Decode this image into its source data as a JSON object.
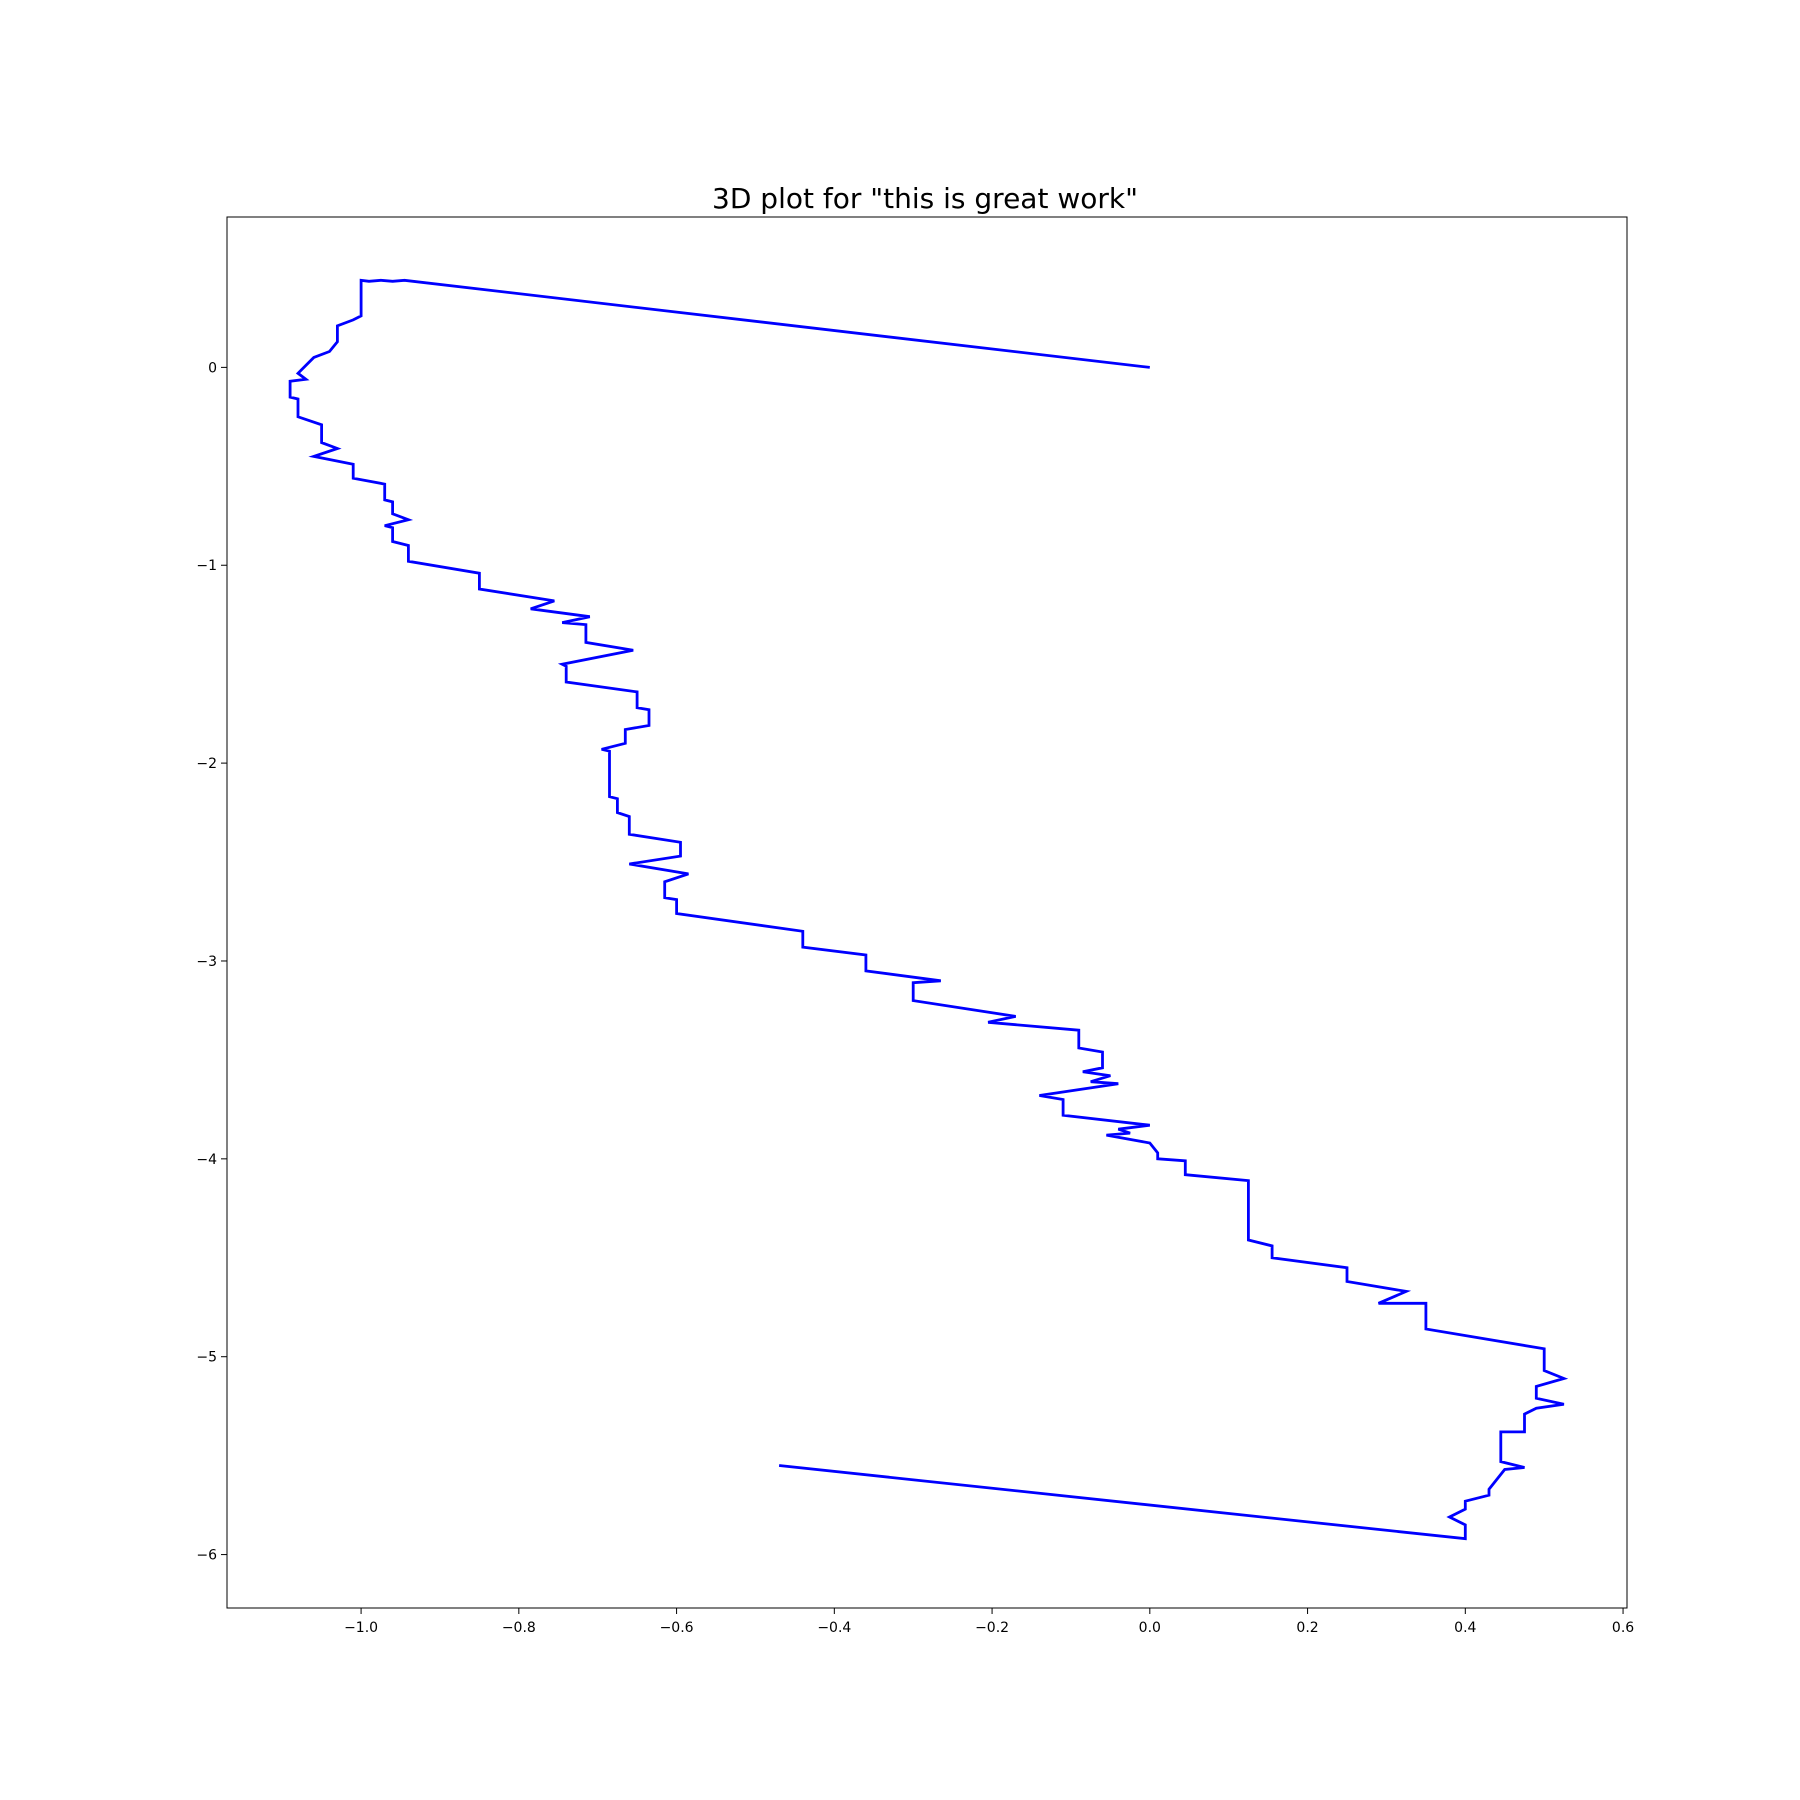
{
  "chart_data": {
    "type": "line",
    "title": "3D plot for \"this is great work\"",
    "xlabel": "",
    "ylabel": "",
    "xlim": [
      -1.17,
      0.605
    ],
    "ylim": [
      -6.27,
      0.76
    ],
    "x_ticks": [
      -1.0,
      -0.8,
      -0.6,
      -0.4,
      -0.2,
      0.0,
      0.2,
      0.4,
      0.6
    ],
    "x_tick_labels": [
      "−1.0",
      "−0.8",
      "−0.6",
      "−0.4",
      "−0.2",
      "0.0",
      "0.2",
      "0.4",
      "0.6"
    ],
    "y_ticks": [
      0,
      -1,
      -2,
      -3,
      -4,
      -5,
      -6
    ],
    "y_tick_labels": [
      "0",
      "−1",
      "−2",
      "−3",
      "−4",
      "−5",
      "−6"
    ],
    "grid": false,
    "legend": "none",
    "series": [
      {
        "color": "#0000ff",
        "x": [
          0.0,
          -0.945,
          -0.96,
          -0.975,
          -0.99,
          -1.0,
          -1.0,
          -1.01,
          -1.03,
          -1.03,
          -1.04,
          -1.06,
          -1.07,
          -1.08,
          -1.07,
          -1.09,
          -1.09,
          -1.08,
          -1.08,
          -1.05,
          -1.05,
          -1.03,
          -1.06,
          -1.01,
          -1.01,
          -0.97,
          -0.97,
          -0.96,
          -0.96,
          -0.94,
          -0.97,
          -0.96,
          -0.96,
          -0.94,
          -0.94,
          -0.85,
          -0.85,
          -0.755,
          -0.785,
          -0.71,
          -0.745,
          -0.715,
          -0.715,
          -0.655,
          -0.745,
          -0.74,
          -0.74,
          -0.65,
          -0.65,
          -0.635,
          -0.635,
          -0.665,
          -0.665,
          -0.695,
          -0.685,
          -0.685,
          -0.675,
          -0.675,
          -0.66,
          -0.66,
          -0.595,
          -0.595,
          -0.66,
          -0.585,
          -0.615,
          -0.615,
          -0.6,
          -0.6,
          -0.44,
          -0.44,
          -0.36,
          -0.36,
          -0.265,
          -0.3,
          -0.3,
          -0.17,
          -0.205,
          -0.09,
          -0.09,
          -0.06,
          -0.06,
          -0.085,
          -0.05,
          -0.075,
          -0.04,
          -0.14,
          -0.11,
          -0.11,
          0.0,
          -0.04,
          -0.025,
          -0.055,
          0.0,
          0.01,
          0.01,
          0.045,
          0.045,
          0.125,
          0.125,
          0.155,
          0.155,
          0.25,
          0.25,
          0.325,
          0.29,
          0.35,
          0.35,
          0.5,
          0.5,
          0.525,
          0.49,
          0.49,
          0.525,
          0.49,
          0.475,
          0.475,
          0.445,
          0.445,
          0.475,
          0.45,
          0.43,
          0.43,
          0.4,
          0.4,
          0.38,
          0.4,
          0.4,
          -0.47
        ],
        "y": [
          0.0,
          0.44,
          0.435,
          0.44,
          0.435,
          0.44,
          0.26,
          0.24,
          0.21,
          0.13,
          0.08,
          0.05,
          0.01,
          -0.03,
          -0.06,
          -0.07,
          -0.15,
          -0.16,
          -0.25,
          -0.29,
          -0.38,
          -0.41,
          -0.45,
          -0.49,
          -0.56,
          -0.59,
          -0.67,
          -0.68,
          -0.74,
          -0.77,
          -0.8,
          -0.81,
          -0.88,
          -0.9,
          -0.98,
          -1.04,
          -1.12,
          -1.18,
          -1.22,
          -1.26,
          -1.29,
          -1.3,
          -1.39,
          -1.43,
          -1.5,
          -1.51,
          -1.59,
          -1.64,
          -1.72,
          -1.73,
          -1.81,
          -1.83,
          -1.9,
          -1.93,
          -1.94,
          -2.17,
          -2.18,
          -2.25,
          -2.27,
          -2.36,
          -2.4,
          -2.47,
          -2.51,
          -2.56,
          -2.6,
          -2.68,
          -2.69,
          -2.76,
          -2.85,
          -2.93,
          -2.97,
          -3.05,
          -3.1,
          -3.11,
          -3.2,
          -3.28,
          -3.31,
          -3.35,
          -3.44,
          -3.46,
          -3.54,
          -3.56,
          -3.58,
          -3.61,
          -3.62,
          -3.68,
          -3.7,
          -3.78,
          -3.83,
          -3.85,
          -3.87,
          -3.88,
          -3.92,
          -3.97,
          -4.0,
          -4.01,
          -4.08,
          -4.11,
          -4.41,
          -4.44,
          -4.5,
          -4.55,
          -4.62,
          -4.67,
          -4.73,
          -4.73,
          -4.86,
          -4.96,
          -5.07,
          -5.11,
          -5.15,
          -5.21,
          -5.24,
          -5.26,
          -5.29,
          -5.38,
          -5.38,
          -5.53,
          -5.56,
          -5.57,
          -5.67,
          -5.7,
          -5.73,
          -5.77,
          -5.81,
          -5.85,
          -5.92,
          -5.55
        ]
      }
    ]
  }
}
